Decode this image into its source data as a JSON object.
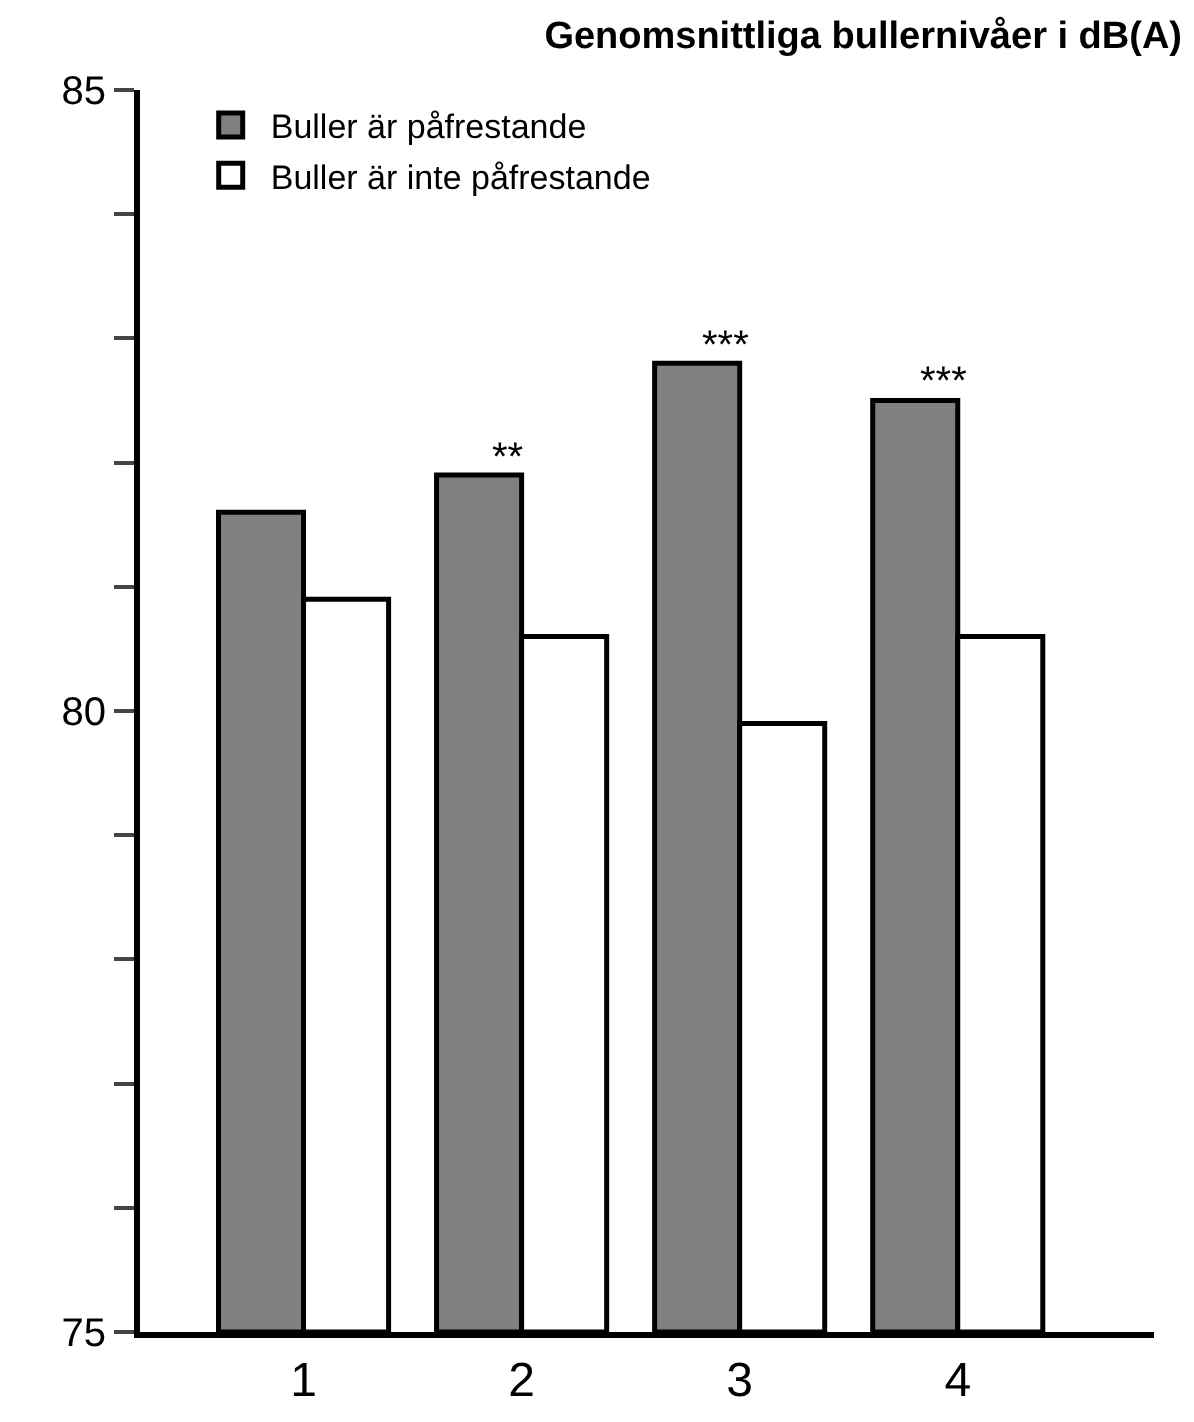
{
  "chart_data": {
    "type": "bar",
    "title": "Genomsnittliga bullernivåer i dB(A)",
    "categories": [
      "1",
      "2",
      "3",
      "4"
    ],
    "series": [
      {
        "name": "Buller är påfrestande",
        "color": "#808080",
        "values": [
          81.6,
          81.9,
          82.8,
          82.5
        ]
      },
      {
        "name": "Buller är inte påfrestande",
        "color": "#ffffff",
        "values": [
          80.9,
          80.6,
          79.9,
          80.6
        ]
      }
    ],
    "ylim": [
      75,
      85
    ],
    "yticks": [
      75,
      {
        "value": 76,
        "label": null
      },
      {
        "value": 77,
        "label": null
      },
      {
        "value": 78,
        "label": null
      },
      {
        "value": 79,
        "label": null
      },
      80,
      {
        "value": 81,
        "label": null
      },
      {
        "value": 82,
        "label": null
      },
      {
        "value": 83,
        "label": null
      },
      {
        "value": 84,
        "label": null
      },
      85
    ],
    "annotations": [
      {
        "text": "**",
        "x": "2",
        "y": 81.9
      },
      {
        "text": "***",
        "x": "3",
        "y": 82.8
      },
      {
        "text": "***",
        "x": "4",
        "y": 82.5
      }
    ],
    "grid": false,
    "legend": "top left"
  }
}
